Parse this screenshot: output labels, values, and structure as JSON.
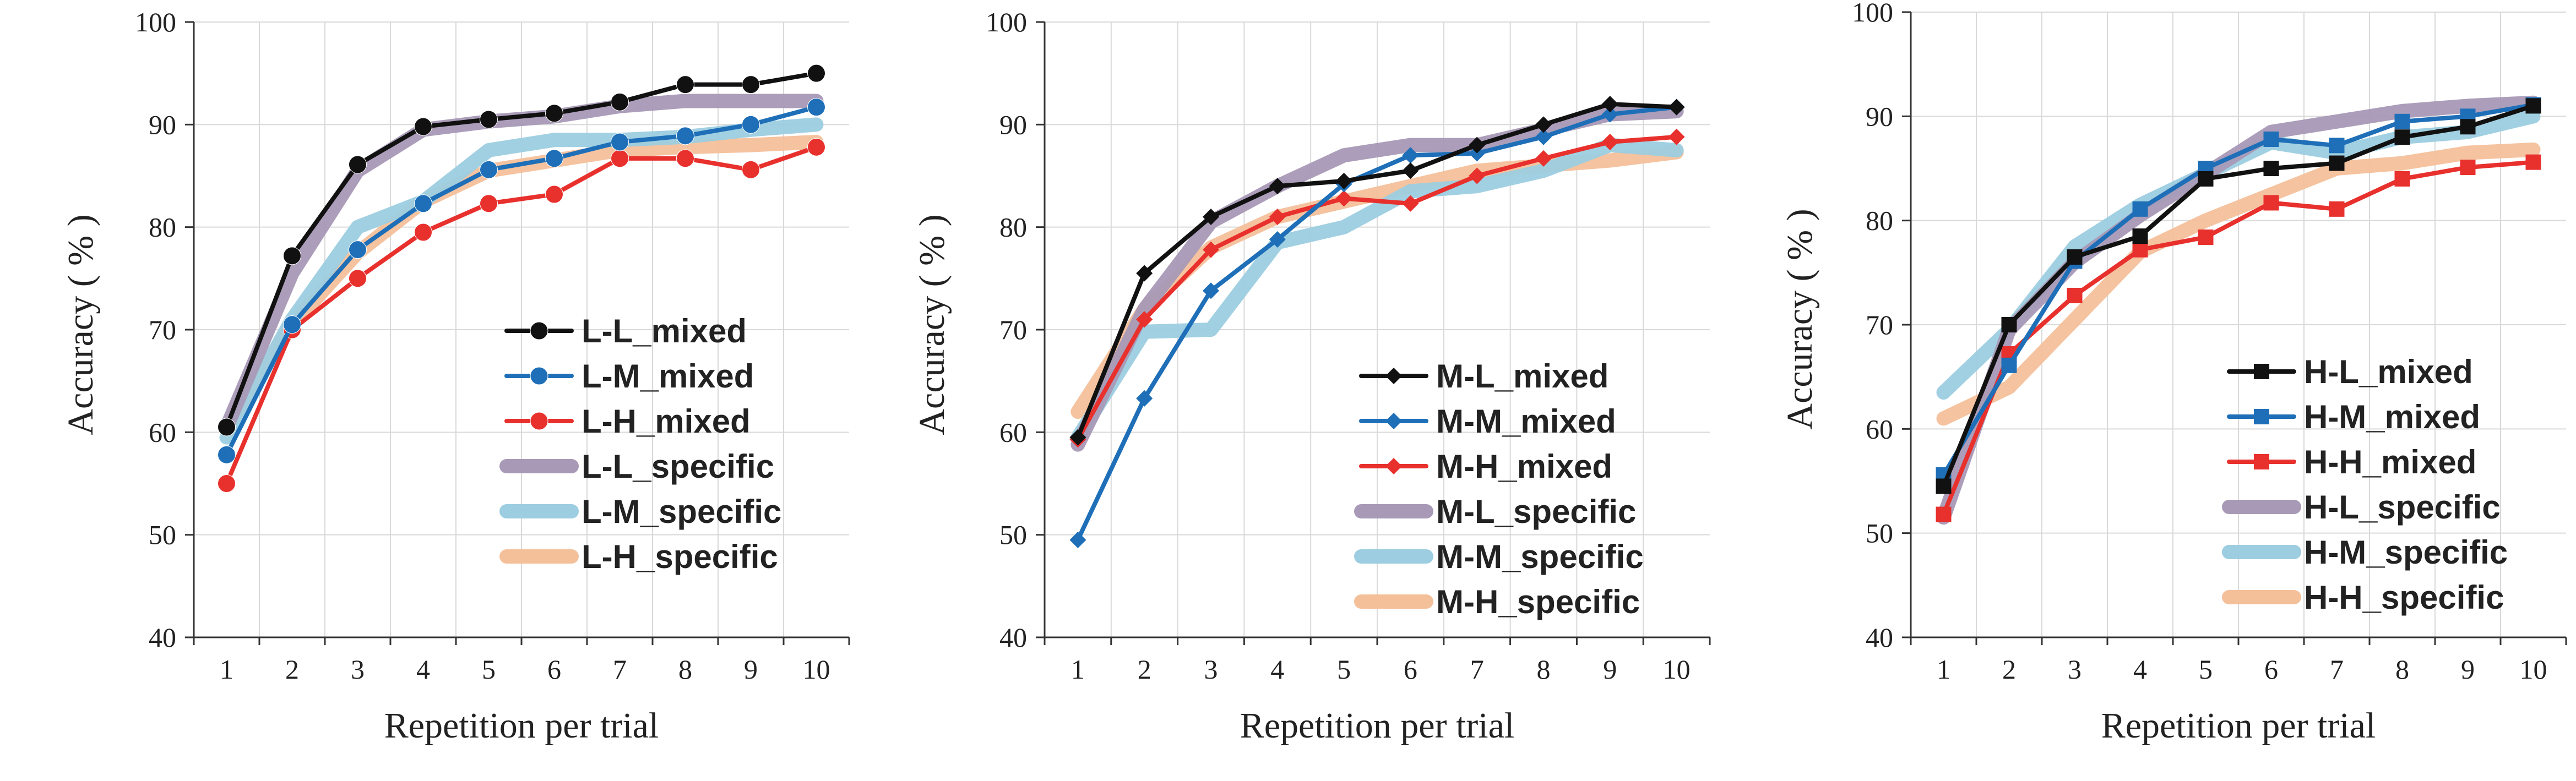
{
  "chart_data": [
    {
      "type": "line",
      "title": "",
      "xlabel": "Repetition per trial",
      "ylabel": "Accuracy ( % )",
      "ylim": [
        40,
        100
      ],
      "yticks": [
        "40",
        "50",
        "60",
        "70",
        "80",
        "90",
        "100"
      ],
      "categories": [
        "1",
        "2",
        "3",
        "4",
        "5",
        "6",
        "7",
        "8",
        "9",
        "10"
      ],
      "grid": "vertical and horizontal",
      "legend": "bottom-right",
      "series": [
        {
          "name": "L-H_specific",
          "style": "thick",
          "marker": "none",
          "color": "#F4C09A",
          "values": [
            60.5,
            70.5,
            77.5,
            82.5,
            85.5,
            86.5,
            87.5,
            87.8,
            88.0,
            88.3
          ]
        },
        {
          "name": "L-M_specific",
          "style": "thick",
          "marker": "none",
          "color": "#9CCDE0",
          "values": [
            59.5,
            71.0,
            80.0,
            82.5,
            87.5,
            88.5,
            88.5,
            88.8,
            89.5,
            90.0
          ]
        },
        {
          "name": "L-L_specific",
          "style": "thick",
          "marker": "none",
          "color": "#A899B6",
          "values": [
            60.5,
            75.5,
            85.5,
            89.5,
            90.3,
            90.8,
            91.8,
            92.3,
            92.3,
            92.3
          ]
        },
        {
          "name": "L-H_mixed",
          "style": "thin",
          "marker": "circle",
          "color": "#E8302D",
          "values": [
            55.0,
            70.0,
            75.0,
            79.5,
            82.3,
            83.2,
            86.7,
            86.7,
            85.6,
            87.8
          ]
        },
        {
          "name": "L-M_mixed",
          "style": "thin",
          "marker": "circle",
          "color": "#1E6FB8",
          "values": [
            57.8,
            70.5,
            77.8,
            82.3,
            85.6,
            86.7,
            88.3,
            88.9,
            90.0,
            91.7
          ]
        },
        {
          "name": "L-L_mixed",
          "style": "thin",
          "marker": "circle",
          "color": "#111111",
          "values": [
            60.5,
            77.2,
            86.1,
            89.8,
            90.5,
            91.1,
            92.2,
            93.9,
            93.9,
            95.0
          ]
        }
      ],
      "legend_order": [
        "L-L_mixed",
        "L-M_mixed",
        "L-H_mixed",
        "L-L_specific",
        "L-M_specific",
        "L-H_specific"
      ]
    },
    {
      "type": "line",
      "title": "",
      "xlabel": "Repetition per trial",
      "ylabel": "Accuracy ( % )",
      "ylim": [
        40,
        100
      ],
      "yticks": [
        "40",
        "50",
        "60",
        "70",
        "80",
        "90",
        "100"
      ],
      "categories": [
        "1",
        "2",
        "3",
        "4",
        "5",
        "6",
        "7",
        "8",
        "9",
        "10"
      ],
      "grid": "vertical and horizontal",
      "legend": "bottom-right",
      "series": [
        {
          "name": "M-H_specific",
          "style": "thick",
          "marker": "none",
          "color": "#F4C09A",
          "values": [
            62.0,
            72.0,
            78.0,
            81.0,
            82.5,
            84.0,
            85.5,
            86.0,
            86.5,
            87.3
          ]
        },
        {
          "name": "M-M_specific",
          "style": "thick",
          "marker": "none",
          "color": "#9CCDE0",
          "values": [
            59.5,
            69.8,
            70.0,
            78.5,
            80.0,
            83.5,
            84.0,
            85.5,
            88.0,
            87.5
          ]
        },
        {
          "name": "M-L_specific",
          "style": "thick",
          "marker": "none",
          "color": "#A899B6",
          "values": [
            58.8,
            72.0,
            80.5,
            84.0,
            87.0,
            88.0,
            88.0,
            89.5,
            91.0,
            91.3
          ]
        },
        {
          "name": "M-H_mixed",
          "style": "thin",
          "marker": "diamond",
          "color": "#E8302D",
          "values": [
            59.3,
            71.0,
            77.8,
            81.0,
            82.8,
            82.3,
            85.0,
            86.7,
            88.3,
            88.8
          ]
        },
        {
          "name": "M-M_mixed",
          "style": "thin",
          "marker": "diamond",
          "color": "#1E6FB8",
          "values": [
            49.5,
            63.3,
            73.8,
            78.8,
            84.2,
            87.0,
            87.2,
            88.8,
            91.0,
            91.7
          ]
        },
        {
          "name": "M-L_mixed",
          "style": "thin",
          "marker": "diamond",
          "color": "#111111",
          "values": [
            59.5,
            75.5,
            81.0,
            84.0,
            84.5,
            85.5,
            88.0,
            90.0,
            92.0,
            91.7
          ]
        }
      ],
      "legend_order": [
        "M-L_mixed",
        "M-M_mixed",
        "M-H_mixed",
        "M-L_specific",
        "M-M_specific",
        "M-H_specific"
      ]
    },
    {
      "type": "line",
      "title": "",
      "xlabel": "Repetition per trial",
      "ylabel": "Accuracy ( % )",
      "ylim": [
        40,
        100
      ],
      "yticks": [
        "40",
        "50",
        "60",
        "70",
        "80",
        "90",
        "100"
      ],
      "categories": [
        "1",
        "2",
        "3",
        "4",
        "5",
        "6",
        "7",
        "8",
        "9",
        "10"
      ],
      "grid": "vertical and horizontal",
      "legend": "bottom-right",
      "series": [
        {
          "name": "H-H_specific",
          "style": "thick",
          "marker": "none",
          "color": "#F4C09A",
          "values": [
            61.0,
            64.0,
            70.5,
            77.0,
            80.0,
            82.5,
            85.0,
            85.5,
            86.5,
            86.8
          ]
        },
        {
          "name": "H-M_specific",
          "style": "thick",
          "marker": "none",
          "color": "#9CCDE0",
          "values": [
            63.5,
            69.5,
            77.5,
            81.5,
            84.5,
            87.5,
            86.5,
            88.0,
            88.5,
            90.0
          ]
        },
        {
          "name": "H-L_specific",
          "style": "thick",
          "marker": "none",
          "color": "#A899B6",
          "values": [
            51.5,
            69.5,
            76.0,
            80.5,
            84.5,
            88.5,
            89.5,
            90.5,
            91.0,
            91.3
          ]
        },
        {
          "name": "H-H_mixed",
          "style": "thin",
          "marker": "square",
          "color": "#E8302D",
          "values": [
            51.8,
            67.2,
            72.8,
            77.2,
            78.4,
            81.7,
            81.1,
            84.0,
            85.1,
            85.6
          ]
        },
        {
          "name": "H-M_mixed",
          "style": "thin",
          "marker": "square",
          "color": "#1E6FB8",
          "values": [
            55.6,
            66.1,
            76.1,
            81.1,
            85.0,
            87.8,
            87.2,
            89.5,
            90.0,
            91.1
          ]
        },
        {
          "name": "H-L_mixed",
          "style": "thin",
          "marker": "square",
          "color": "#111111",
          "values": [
            54.5,
            70.0,
            76.5,
            78.5,
            84.0,
            85.0,
            85.5,
            88.0,
            89.0,
            91.0
          ]
        }
      ],
      "legend_order": [
        "H-L_mixed",
        "H-M_mixed",
        "H-H_mixed",
        "H-L_specific",
        "H-M_specific",
        "H-H_specific"
      ]
    }
  ]
}
